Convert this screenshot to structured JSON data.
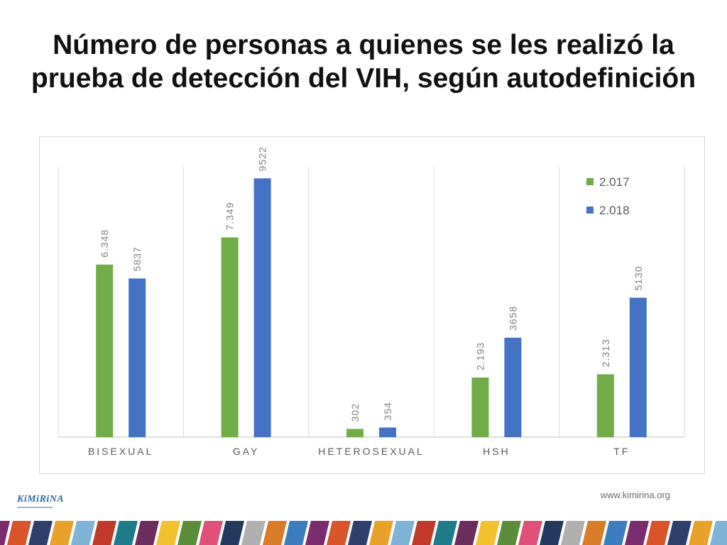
{
  "slide": {
    "title_line1": "Número de personas a quienes se les realizó la",
    "title_line2": "prueba de detección del VIH, según autodefinición",
    "footer_url": "www.kimirina.org",
    "logo_text": "KiMiRiNA"
  },
  "chart_data": {
    "type": "bar",
    "title": "",
    "xlabel": "",
    "ylabel": "",
    "ylim": [
      0,
      10000
    ],
    "grid": false,
    "legend_position": "top-right",
    "categories": [
      "BISEXUAL",
      "GAY",
      "HETEROSEXUAL",
      "HSH",
      "TF"
    ],
    "series": [
      {
        "name": "2.017",
        "color": "#70ad47",
        "values": [
          6348,
          7349,
          302,
          2193,
          2313
        ],
        "labels": [
          "6.348",
          "7.349",
          "302",
          "2.193",
          "2.313"
        ]
      },
      {
        "name": "2.018",
        "color": "#4472c4",
        "values": [
          5837,
          9522,
          354,
          3658,
          5130
        ],
        "labels": [
          "5837",
          "9522",
          "354",
          "3658",
          "5130"
        ]
      }
    ]
  },
  "decor": {
    "band_colors": [
      "#7a2c6e",
      "#d9532b",
      "#2f3f6b",
      "#e8a12a",
      "#7fb3d5",
      "#c0392b",
      "#1f7a8c",
      "#6b2d5c",
      "#f2c12e",
      "#5b8c3a",
      "#e0507a",
      "#233a5e",
      "#b0b0b0",
      "#d97b29",
      "#3c7dbf"
    ]
  }
}
